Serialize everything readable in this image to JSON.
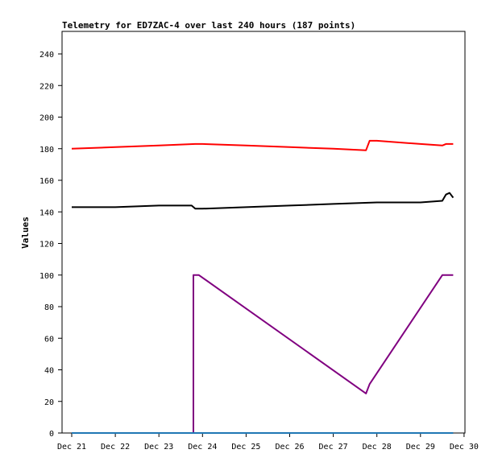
{
  "chart_data": {
    "type": "line",
    "title": "Telemetry for ED7ZAC-4 over last 240 hours (187 points)",
    "xlabel": "",
    "ylabel": "Values",
    "ylim": [
      0,
      250
    ],
    "yticks": [
      0,
      20,
      40,
      60,
      80,
      100,
      120,
      140,
      160,
      180,
      200,
      220,
      240
    ],
    "xlim": [
      "Dec 21",
      "Dec 30"
    ],
    "xticks": [
      "Dec 21",
      "Dec 22",
      "Dec 23",
      "Dec 24",
      "Dec 25",
      "Dec 26",
      "Dec 27",
      "Dec 28",
      "Dec 29",
      "Dec 30"
    ],
    "grid": false,
    "legend": "none",
    "series": [
      {
        "color": "#ff0000",
        "x": [
          "Dec 21 00:00",
          "Dec 22 00:00",
          "Dec 23 00:00",
          "Dec 23 20:00",
          "Dec 24 00:00",
          "Dec 25 00:00",
          "Dec 26 00:00",
          "Dec 27 00:00",
          "Dec 27 18:00",
          "Dec 27 20:00",
          "Dec 28 00:00",
          "Dec 29 00:00",
          "Dec 29 12:00",
          "Dec 29 14:00",
          "Dec 29 18:00"
        ],
        "y": [
          180,
          181,
          182,
          183,
          183,
          182,
          181,
          180,
          179,
          185,
          185,
          183,
          182,
          183,
          183
        ]
      },
      {
        "color": "#000000",
        "x": [
          "Dec 21 00:00",
          "Dec 22 00:00",
          "Dec 23 00:00",
          "Dec 23 18:00",
          "Dec 23 20:00",
          "Dec 24 00:00",
          "Dec 25 00:00",
          "Dec 26 00:00",
          "Dec 27 00:00",
          "Dec 28 00:00",
          "Dec 29 00:00",
          "Dec 29 12:00",
          "Dec 29 14:00",
          "Dec 29 16:00",
          "Dec 29 18:00"
        ],
        "y": [
          143,
          143,
          144,
          144,
          142,
          142,
          143,
          144,
          145,
          146,
          146,
          147,
          151,
          152,
          149
        ]
      },
      {
        "color": "#800080",
        "x": [
          "Dec 21 00:00",
          "Dec 23 19:00",
          "Dec 23 19:00",
          "Dec 23 19:00",
          "Dec 23 22:00",
          "Dec 27 18:00",
          "Dec 27 20:00",
          "Dec 29 12:00",
          "Dec 29 18:00"
        ],
        "y": [
          0,
          0,
          50,
          100,
          100,
          25,
          31,
          100,
          100
        ]
      },
      {
        "color": "#1f77b4",
        "x": [
          "Dec 21 00:00",
          "Dec 29 18:00"
        ],
        "y": [
          0,
          0
        ]
      }
    ]
  }
}
